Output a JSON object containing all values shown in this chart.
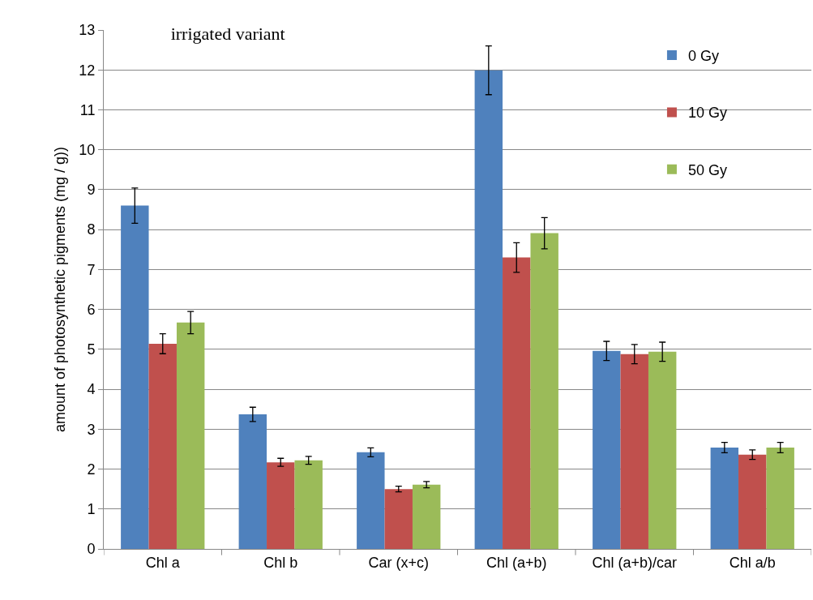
{
  "chart_data": {
    "type": "bar",
    "title": "irrigated variant",
    "ylabel": "amount of photosynthetic pigments (mg / g))",
    "categories": [
      "Chl a",
      "Chl b",
      "Car (x+c)",
      "Chl (a+b)",
      "Chl (a+b)/car",
      "Chl a/b"
    ],
    "series": [
      {
        "name": "0 Gy",
        "color": "#4f81bd",
        "values": [
          8.6,
          3.37,
          2.42,
          11.99,
          4.96,
          2.54
        ],
        "errors": [
          0.44,
          0.18,
          0.11,
          0.61,
          0.24,
          0.13
        ]
      },
      {
        "name": "10 Gy",
        "color": "#c0504d",
        "values": [
          5.14,
          2.17,
          1.5,
          7.3,
          4.88,
          2.36
        ],
        "errors": [
          0.25,
          0.1,
          0.07,
          0.37,
          0.24,
          0.12
        ]
      },
      {
        "name": "50 Gy",
        "color": "#9bbb59",
        "values": [
          5.67,
          2.22,
          1.61,
          7.91,
          4.94,
          2.54
        ],
        "errors": [
          0.28,
          0.1,
          0.08,
          0.39,
          0.24,
          0.13
        ]
      }
    ],
    "ylim": [
      0,
      13
    ],
    "yticks": [
      0,
      1,
      2,
      3,
      4,
      5,
      6,
      7,
      8,
      9,
      10,
      11,
      12,
      13
    ],
    "grid": "y",
    "legend": "top right"
  }
}
